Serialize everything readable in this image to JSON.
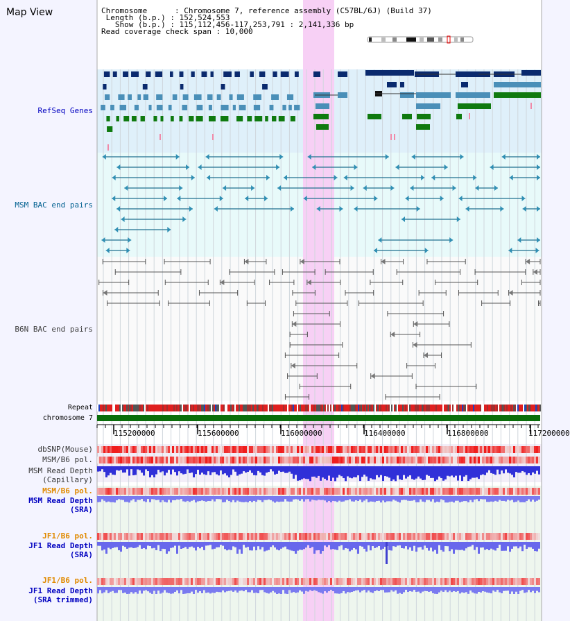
{
  "view_title": "Map View",
  "info": {
    "chromosome_label": "Chromosome",
    "chromosome_value": "Chromosome 7, reference assembly (C57BL/6J) (Build 37)",
    "length_label": "Length (b.p.)",
    "length_value": "152,524,553",
    "show_label": "Show (b.p.)",
    "show_value": "115,112,456-117,253,791 : 2,141,336 bp",
    "coverage_label": "Read coverage check span",
    "coverage_value": "10,000"
  },
  "tracks": {
    "refseq": "RefSeq Genes",
    "msm_bac": "MSM BAC end pairs",
    "b6n_bac": "B6N BAC end pairs",
    "repeat": "Repeat",
    "chromosome": "chromosome 7",
    "dbsnp": "dbSNP(Mouse)",
    "msm_b6_pol_1": "MSM/B6 pol.",
    "msm_depth_cap_1": "MSM Read Depth",
    "msm_depth_cap_2": "(Capillary)",
    "msm_b6_pol_2": "MSM/B6 pol.",
    "msm_depth_sra_1": "MSM Read Depth",
    "msm_depth_sra_2": "(SRA)",
    "jf1_pol_1": "JF1/B6 pol.",
    "jf1_depth_sra_1": "JF1 Read Depth",
    "jf1_depth_sra_2": "(SRA)",
    "jf1_pol_2": "JF1/B6 pol.",
    "jf1_depth_trim_1": "JF1 Read Depth",
    "jf1_depth_trim_2": "(SRA trimmed)"
  },
  "axis_ticks": [
    "115200000",
    "115600000",
    "116000000",
    "116400000",
    "116800000",
    "117200000"
  ],
  "colors": {
    "refseq_label": "#0000c0",
    "msm_bac_label": "#006090",
    "b6n_label": "#404040",
    "gene_dark": "#0a2a6e",
    "gene_teal": "#4a8fb8",
    "gene_green": "#0f7a0f",
    "highlight": "#f7d0f5",
    "snp": "#e03030",
    "depth": "#3535e8",
    "orange_label": "#e08a00"
  }
}
